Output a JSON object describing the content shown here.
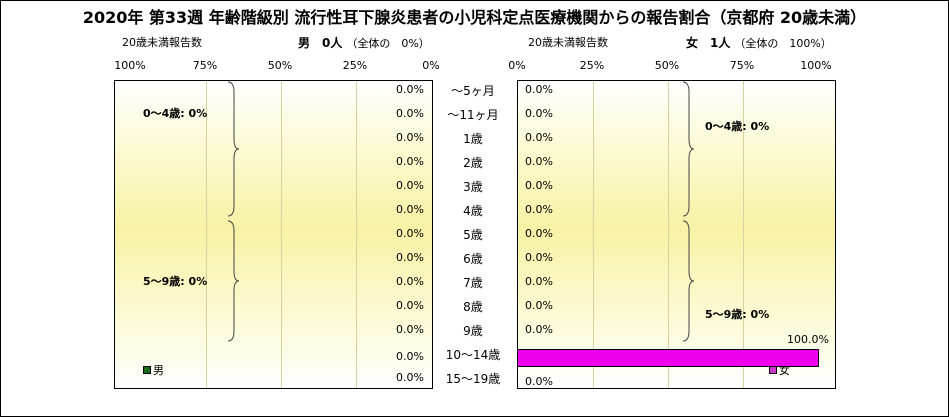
{
  "title": "2020年 第33週 年齢階級別 流行性耳下腺炎患者の小児科定点医療機関からの報告割合（京都府 20歳未満）",
  "left": {
    "sub_label": "20歳未満報告数",
    "sex_label": "男　0人",
    "share_label": "（全体の　0%）",
    "legend": "男",
    "legend_color": "#1a6b1a",
    "ticks": [
      "100%",
      "75%",
      "50%",
      "25%",
      "0%"
    ],
    "brace_labels": [
      "0～4歳: 0%",
      "5～9歳: 0%"
    ]
  },
  "right": {
    "sub_label": "20歳未満報告数",
    "sex_label": "女　1人",
    "share_label": "（全体の　100%）",
    "legend": "女",
    "legend_color": "#cc33cc",
    "ticks": [
      "0%",
      "25%",
      "50%",
      "75%",
      "100%"
    ],
    "brace_labels": [
      "0～4歳: 0%",
      "5～9歳: 0%"
    ]
  },
  "age_groups": [
    "～5ヶ月",
    "～11ヶ月",
    "1歳",
    "2歳",
    "3歳",
    "4歳",
    "5歳",
    "6歳",
    "7歳",
    "8歳",
    "9歳",
    "10～14歳",
    "15～19歳"
  ],
  "chart_data": {
    "type": "bar",
    "orientation": "horizontal",
    "title": "2020年 第33週 年齢階級別 流行性耳下腺炎患者の小児科定点医療機関からの報告割合（京都府 20歳未満）",
    "categories": [
      "～5ヶ月",
      "～11ヶ月",
      "1歳",
      "2歳",
      "3歳",
      "4歳",
      "5歳",
      "6歳",
      "7歳",
      "8歳",
      "9歳",
      "10～14歳",
      "15～19歳"
    ],
    "series": [
      {
        "name": "男",
        "values": [
          0,
          0,
          0,
          0,
          0,
          0,
          0,
          0,
          0,
          0,
          0,
          0,
          0
        ],
        "labels": [
          "0.0%",
          "0.0%",
          "0.0%",
          "0.0%",
          "0.0%",
          "0.0%",
          "0.0%",
          "0.0%",
          "0.0%",
          "0.0%",
          "0.0%",
          "0.0%",
          "0.0%"
        ]
      },
      {
        "name": "女",
        "values": [
          0,
          0,
          0,
          0,
          0,
          0,
          0,
          0,
          0,
          0,
          0,
          100,
          0
        ],
        "labels": [
          "0.0%",
          "0.0%",
          "0.0%",
          "0.0%",
          "0.0%",
          "0.0%",
          "0.0%",
          "0.0%",
          "0.0%",
          "0.0%",
          "0.0%",
          "100.0%",
          "0.0%"
        ]
      }
    ],
    "xlim": [
      0,
      100
    ],
    "grid": true
  }
}
